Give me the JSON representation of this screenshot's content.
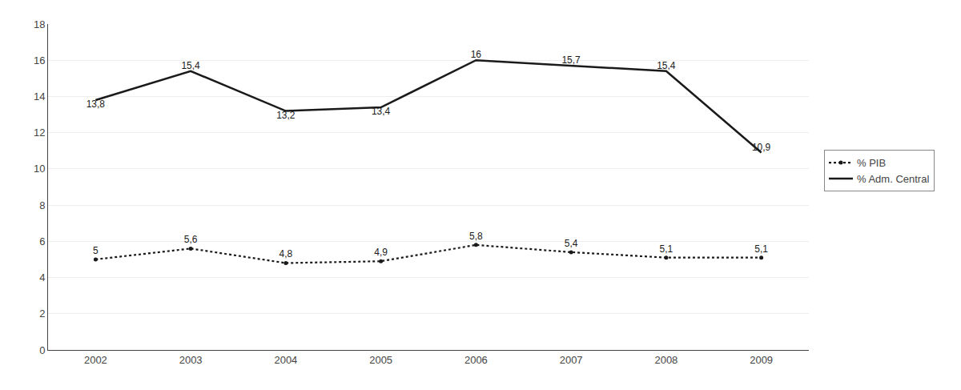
{
  "chart_data": {
    "type": "line",
    "x": [
      2002,
      2003,
      2004,
      2005,
      2006,
      2007,
      2008,
      2009
    ],
    "xlim": [
      2001.5,
      2009.5
    ],
    "xticks": [
      2002,
      2003,
      2004,
      2005,
      2006,
      2007,
      2008,
      2009
    ],
    "ylim": [
      0,
      18
    ],
    "yticks": [
      0,
      2,
      4,
      6,
      8,
      10,
      12,
      14,
      16,
      18
    ],
    "grid": "y",
    "legend": "right",
    "data_labels": true,
    "series": [
      {
        "name": "% PIB",
        "color": "#1a1a1a",
        "line_style": "dotted",
        "marker": "dot",
        "values": [
          5.0,
          5.6,
          4.8,
          4.9,
          5.8,
          5.4,
          5.1,
          5.1
        ],
        "value_labels": [
          "5",
          "5,6",
          "4,8",
          "4,9",
          "5,8",
          "5,4",
          "5,1",
          "5,1"
        ]
      },
      {
        "name": "% Adm. Central",
        "color": "#1a1a1a",
        "line_style": "solid",
        "marker": "none",
        "values": [
          13.8,
          15.4,
          13.2,
          13.4,
          16.0,
          15.7,
          15.4,
          10.9
        ],
        "value_labels": [
          "13,8",
          "15,4",
          "13,2",
          "13,4",
          "16",
          "15,7",
          "15,4",
          "10,9"
        ]
      }
    ]
  }
}
